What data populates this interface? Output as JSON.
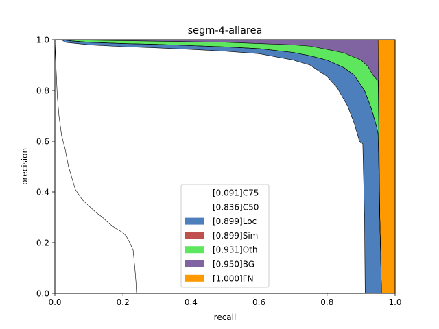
{
  "chart_data": {
    "type": "area",
    "title": "segm-4-allarea",
    "xlabel": "recall",
    "ylabel": "precision",
    "xlim": [
      0,
      1
    ],
    "ylim": [
      0,
      1
    ],
    "xticks": [
      "0.0",
      "0.2",
      "0.4",
      "0.6",
      "0.8",
      "1.0"
    ],
    "yticks": [
      "0.0",
      "0.2",
      "0.4",
      "0.6",
      "0.8",
      "1.0"
    ],
    "grid": false,
    "legend_position": "lower-center",
    "series": [
      {
        "name": "[0.091]C75",
        "color": "#ffffff",
        "x": [
          0.0,
          0.003,
          0.007,
          0.012,
          0.02,
          0.03,
          0.04,
          0.06,
          0.08,
          0.1,
          0.12,
          0.14,
          0.16,
          0.18,
          0.2,
          0.21,
          0.22,
          0.23,
          0.235,
          0.238,
          0.24
        ],
        "y": [
          1.0,
          0.9,
          0.78,
          0.7,
          0.62,
          0.57,
          0.5,
          0.41,
          0.37,
          0.345,
          0.32,
          0.3,
          0.275,
          0.255,
          0.24,
          0.225,
          0.2,
          0.17,
          0.1,
          0.05,
          0.0
        ]
      },
      {
        "name": "[0.836]C50",
        "color": "#ffffff",
        "x": [
          0.0,
          0.02,
          0.03,
          0.05,
          0.1,
          0.2,
          0.3,
          0.4,
          0.5,
          0.6,
          0.7,
          0.75,
          0.8,
          0.83,
          0.86,
          0.88,
          0.895,
          0.905,
          0.91,
          0.912
        ],
        "y": [
          1.0,
          1.0,
          0.99,
          0.987,
          0.98,
          0.973,
          0.968,
          0.962,
          0.955,
          0.945,
          0.92,
          0.9,
          0.855,
          0.81,
          0.74,
          0.67,
          0.6,
          0.59,
          0.3,
          0.0
        ]
      },
      {
        "name": "[0.899]Loc",
        "color": "#4c7fbc",
        "x": [
          0.0,
          0.02,
          0.05,
          0.1,
          0.2,
          0.3,
          0.4,
          0.5,
          0.6,
          0.7,
          0.75,
          0.8,
          0.85,
          0.88,
          0.91,
          0.93,
          0.945,
          0.95,
          0.955,
          0.96
        ],
        "y": [
          1.0,
          1.0,
          0.995,
          0.99,
          0.985,
          0.982,
          0.977,
          0.972,
          0.965,
          0.95,
          0.937,
          0.92,
          0.89,
          0.86,
          0.8,
          0.73,
          0.66,
          0.63,
          0.3,
          0.0
        ]
      },
      {
        "name": "[0.899]Sim",
        "color": "#c0504d",
        "x": [
          0.0,
          0.02,
          0.05,
          0.1,
          0.2,
          0.3,
          0.4,
          0.5,
          0.6,
          0.7,
          0.75,
          0.8,
          0.85,
          0.88,
          0.91,
          0.93,
          0.945,
          0.95,
          0.955,
          0.96
        ],
        "y": [
          1.0,
          1.0,
          0.995,
          0.99,
          0.985,
          0.982,
          0.977,
          0.972,
          0.965,
          0.95,
          0.937,
          0.92,
          0.89,
          0.86,
          0.8,
          0.73,
          0.66,
          0.63,
          0.3,
          0.0
        ]
      },
      {
        "name": "[0.931]Oth",
        "color": "#5ee65e",
        "x": [
          0.0,
          0.02,
          0.1,
          0.2,
          0.3,
          0.4,
          0.5,
          0.6,
          0.7,
          0.75,
          0.8,
          0.85,
          0.9,
          0.92,
          0.935,
          0.945,
          0.95,
          0.955,
          0.96
        ],
        "y": [
          1.0,
          1.0,
          0.998,
          0.996,
          0.994,
          0.992,
          0.99,
          0.985,
          0.98,
          0.975,
          0.962,
          0.948,
          0.92,
          0.895,
          0.86,
          0.845,
          0.84,
          0.3,
          0.0
        ]
      },
      {
        "name": "[0.950]BG",
        "color": "#8064a2",
        "x": [
          0.0,
          0.95,
          0.955,
          0.96
        ],
        "y": [
          1.0,
          1.0,
          0.3,
          0.0
        ]
      },
      {
        "name": "[1.000]FN",
        "color": "#ff9900",
        "x": [
          0.0,
          1.0,
          1.0
        ],
        "y": [
          1.0,
          1.0,
          0.0
        ]
      }
    ]
  }
}
